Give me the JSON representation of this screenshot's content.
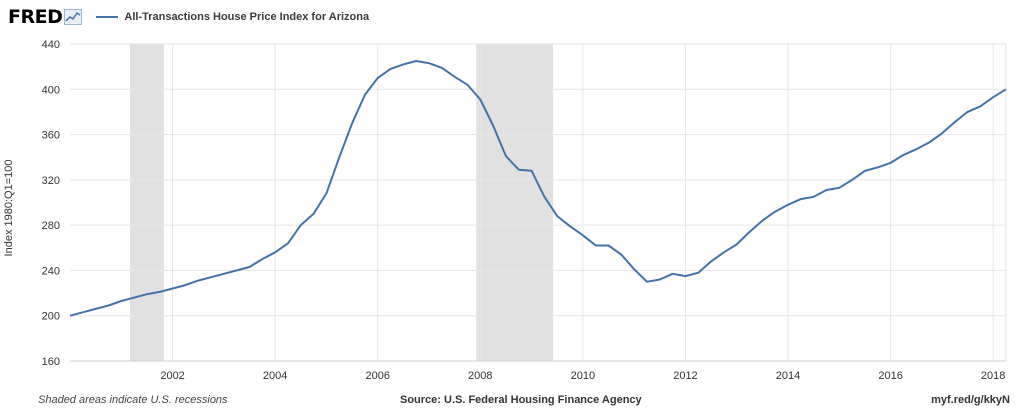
{
  "header": {
    "logo_text": "FRED",
    "series_title": "All-Transactions House Price Index for Arizona"
  },
  "footer": {
    "recession_note": "Shaded areas indicate U.S. recessions",
    "source": "Source: U.S. Federal Housing Finance Agency",
    "short_link": "myf.red/g/kkyN"
  },
  "colors": {
    "line": "#4572a7",
    "recession": "#e1e1e1",
    "grid": "#e6e6e6"
  },
  "chart_data": {
    "type": "line",
    "title": "All-Transactions House Price Index for Arizona",
    "xlabel": "",
    "ylabel": "Index 1980:Q1=100",
    "xlim": [
      2000.0,
      2018.25
    ],
    "ylim": [
      160,
      440
    ],
    "yticks": [
      160,
      200,
      240,
      280,
      320,
      360,
      400,
      440
    ],
    "xticks": [
      2002,
      2004,
      2006,
      2008,
      2010,
      2012,
      2014,
      2016,
      2018
    ],
    "grid": true,
    "legend_position": "top-left",
    "recessions": [
      [
        2001.17,
        2001.83
      ],
      [
        2007.92,
        2009.42
      ]
    ],
    "series": [
      {
        "name": "All-Transactions House Price Index for Arizona",
        "x": [
          2000.0,
          2000.25,
          2000.5,
          2000.75,
          2001.0,
          2001.25,
          2001.5,
          2001.75,
          2002.0,
          2002.25,
          2002.5,
          2002.75,
          2003.0,
          2003.25,
          2003.5,
          2003.75,
          2004.0,
          2004.25,
          2004.5,
          2004.75,
          2005.0,
          2005.25,
          2005.5,
          2005.75,
          2006.0,
          2006.25,
          2006.5,
          2006.75,
          2007.0,
          2007.25,
          2007.5,
          2007.75,
          2008.0,
          2008.25,
          2008.5,
          2008.75,
          2009.0,
          2009.25,
          2009.5,
          2009.75,
          2010.0,
          2010.25,
          2010.5,
          2010.75,
          2011.0,
          2011.25,
          2011.5,
          2011.75,
          2012.0,
          2012.25,
          2012.5,
          2012.75,
          2013.0,
          2013.25,
          2013.5,
          2013.75,
          2014.0,
          2014.25,
          2014.5,
          2014.75,
          2015.0,
          2015.25,
          2015.5,
          2015.75,
          2016.0,
          2016.25,
          2016.5,
          2016.75,
          2017.0,
          2017.25,
          2017.5,
          2017.75,
          2018.0,
          2018.25
        ],
        "values": [
          200,
          203,
          206,
          209,
          213,
          216,
          219,
          221,
          224,
          227,
          231,
          234,
          237,
          240,
          243,
          250,
          256,
          264,
          280,
          290,
          308,
          340,
          370,
          395,
          410,
          418,
          422,
          425,
          423,
          419,
          411,
          404,
          391,
          368,
          341,
          329,
          328,
          305,
          288,
          279,
          271,
          262,
          262,
          254,
          241,
          230,
          232,
          237,
          235,
          238,
          248,
          256,
          263,
          274,
          284,
          292,
          298,
          303,
          305,
          311,
          313,
          320,
          328,
          331,
          335,
          342,
          347,
          353,
          361,
          371,
          380,
          385,
          393,
          400
        ]
      }
    ]
  }
}
